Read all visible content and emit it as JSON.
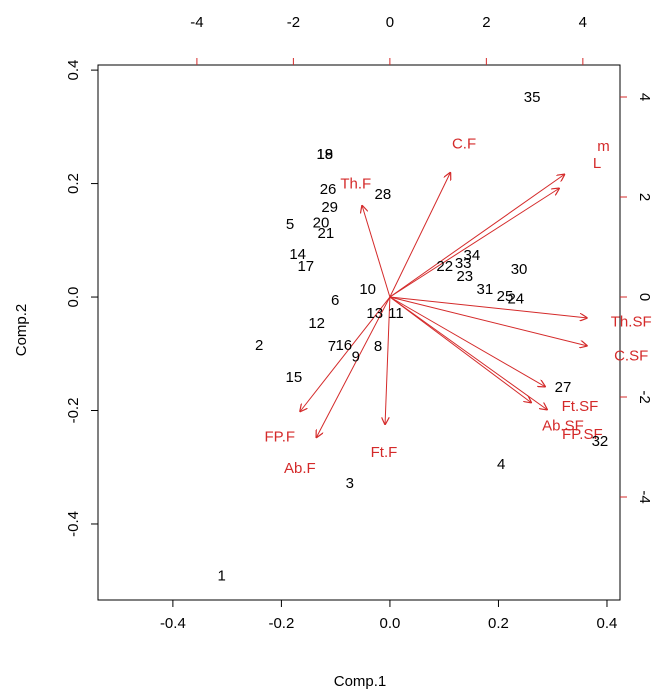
{
  "chart_data": {
    "type": "biplot",
    "x_label": "Comp.1",
    "y_label": "Comp.2",
    "xlim": [
      -0.538,
      0.424
    ],
    "ylim": [
      -0.534,
      0.409
    ],
    "xticks": [
      -0.4,
      -0.2,
      {
        "value": 0,
        "label": "0.0"
      },
      0.2,
      0.4
    ],
    "yticks": [
      -0.4,
      -0.2,
      {
        "value": 0,
        "label": "0.0"
      },
      0.2,
      0.4
    ],
    "x2lim": [
      -6.05,
      4.77
    ],
    "y2lim": [
      -6.06,
      4.64
    ],
    "x2ticks": [
      -4,
      -2,
      0,
      2,
      4
    ],
    "y2ticks": [
      -4,
      -2,
      0,
      2,
      4
    ],
    "points": {
      "color": "#000000",
      "labels": [
        "35",
        "19",
        "18",
        "26",
        "29",
        "28",
        "5",
        "20",
        "21",
        "14",
        "17",
        "10",
        "6",
        "12",
        "13",
        "11",
        "2",
        "7",
        "16",
        "9",
        "8",
        "15",
        "3",
        "1",
        "22",
        "33",
        "34",
        "23",
        "31",
        "25",
        "24",
        "30",
        "27",
        "32",
        "4"
      ],
      "x": [
        0.262,
        -0.12,
        -0.12,
        -0.114,
        -0.111,
        -0.013,
        -0.184,
        -0.127,
        -0.118,
        -0.17,
        -0.155,
        -0.041,
        -0.101,
        -0.135,
        -0.028,
        0.011,
        -0.241,
        -0.107,
        -0.085,
        -0.063,
        -0.022,
        -0.177,
        -0.074,
        -0.31,
        0.101,
        0.135,
        0.151,
        0.138,
        0.175,
        0.212,
        0.232,
        0.238,
        0.319,
        0.387,
        0.205
      ],
      "y": [
        0.351,
        0.25,
        0.25,
        0.189,
        0.157,
        0.18,
        0.127,
        0.13,
        0.111,
        0.074,
        0.053,
        0.012,
        -0.007,
        -0.048,
        -0.03,
        -0.03,
        -0.086,
        -0.088,
        -0.086,
        -0.107,
        -0.088,
        -0.143,
        -0.33,
        -0.493,
        0.053,
        0.058,
        0.072,
        0.035,
        0.012,
        0,
        -0.004,
        0.048,
        -0.16,
        -0.256,
        -0.296
      ]
    },
    "loadings": {
      "color": "#d42a2a",
      "labels": [
        "C.F",
        "m",
        "L",
        "Th.F",
        "Th.SF",
        "C.SF",
        "Ft.SF",
        "Ab.SF",
        "FP.SF",
        "FP.F",
        "Ab.F",
        "Ft.F"
      ],
      "x": [
        1.26,
        3.63,
        3.52,
        -0.58,
        4.1,
        4.1,
        3.23,
        2.94,
        3.27,
        -1.87,
        -1.53,
        -0.1
      ],
      "y": [
        2.5,
        2.46,
        2.18,
        1.84,
        -0.42,
        -0.98,
        -1.8,
        -2.12,
        -2.26,
        -2.3,
        -2.82,
        -2.56
      ]
    }
  }
}
